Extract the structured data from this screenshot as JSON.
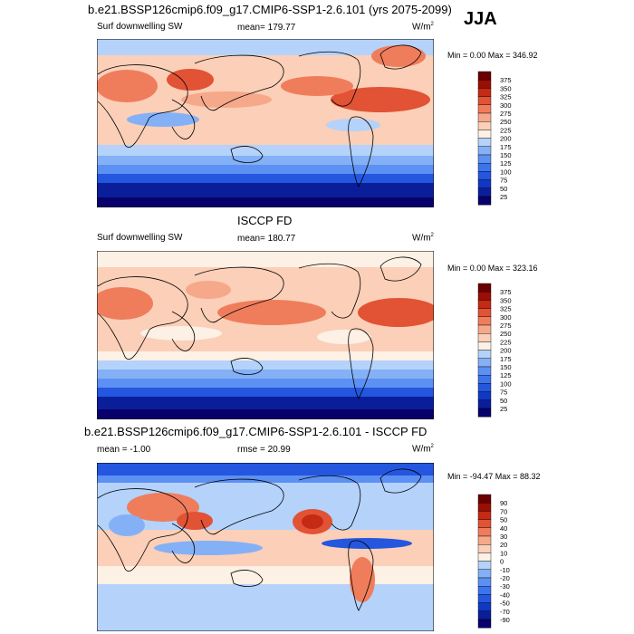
{
  "season": "JJA",
  "panels": [
    {
      "title": "b.e21.BSSP126cmip6.f09_g17.CMIP6-SSP1-2.6.101 (yrs 2075-2099)",
      "left_label": "Surf downwelling SW",
      "center_label": "mean= 179.77",
      "units": "W/m",
      "units_sup": "2",
      "minmax": "Min =   0.00 Max = 346.92",
      "colorbar_ticks": [
        "25",
        "50",
        "75",
        "100",
        "125",
        "150",
        "175",
        "200",
        "225",
        "250",
        "275",
        "300",
        "325",
        "350",
        "375"
      ]
    },
    {
      "title": "ISCCP FD",
      "left_label": "Surf downwelling SW",
      "center_label": "mean= 180.77",
      "units": "W/m",
      "units_sup": "2",
      "minmax": "Min =   0.00 Max = 323.16",
      "colorbar_ticks": [
        "25",
        "50",
        "75",
        "100",
        "125",
        "150",
        "175",
        "200",
        "225",
        "250",
        "275",
        "300",
        "325",
        "350",
        "375"
      ]
    },
    {
      "title": "b.e21.BSSP126cmip6.f09_g17.CMIP6-SSP1-2.6.101 - ISCCP FD",
      "left_label": "mean =  -1.00",
      "center_label": "rmse =  20.99",
      "units": "W/m",
      "units_sup": "2",
      "minmax": "Min = -94.47 Max =  88.32",
      "colorbar_ticks": [
        "-90",
        "-70",
        "-50",
        "-40",
        "-30",
        "-20",
        "-10",
        "0",
        "10",
        "20",
        "30",
        "40",
        "50",
        "70",
        "90"
      ]
    }
  ],
  "colors": {
    "abs_scale": [
      "#08006b",
      "#0a1e9a",
      "#1038c4",
      "#2456e0",
      "#3c74ee",
      "#5c90f2",
      "#84b0f6",
      "#b4d2fa",
      "#fdf0e4",
      "#fbcfb8",
      "#f6a88a",
      "#ef7d5c",
      "#e25234",
      "#c42a14",
      "#9a0e04",
      "#6a0000"
    ],
    "diff_scale": [
      "#08006b",
      "#0a1e9a",
      "#1038c4",
      "#2456e0",
      "#3c74ee",
      "#5c90f2",
      "#84b0f6",
      "#b4d2fa",
      "#fdf0e4",
      "#fbcfb8",
      "#f6a88a",
      "#ef7d5c",
      "#e25234",
      "#c42a14",
      "#9a0e04",
      "#6a0000"
    ]
  }
}
